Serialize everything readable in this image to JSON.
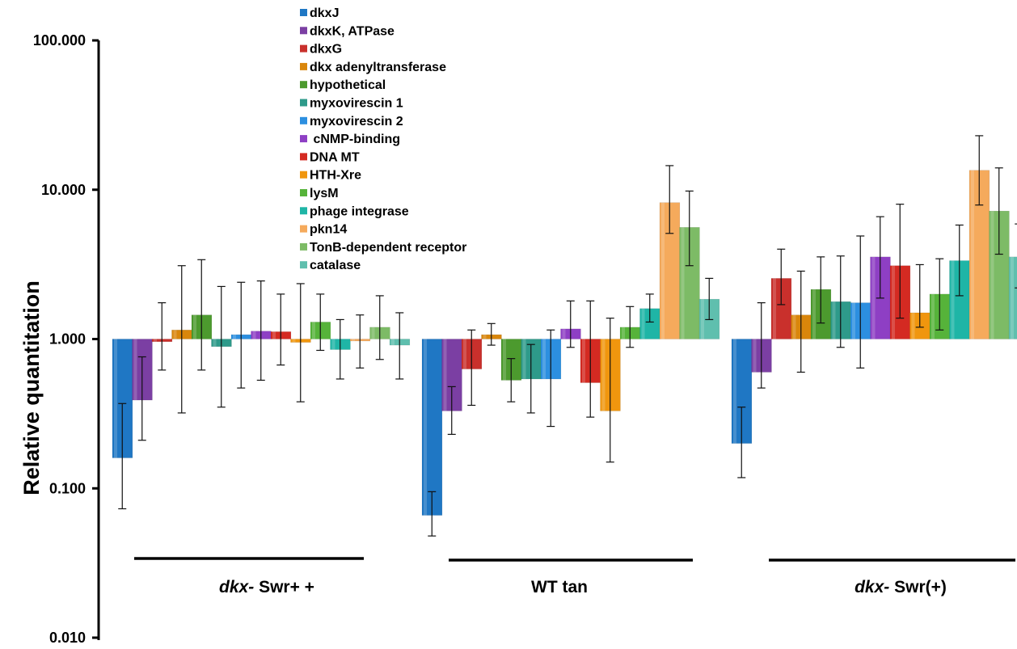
{
  "chart_data": {
    "type": "bar",
    "yscale": "log",
    "ylim": [
      0.01,
      100
    ],
    "yticks": [
      "100.000",
      "10.000",
      "1.000",
      "0.100",
      "0.010"
    ],
    "ylabel": "Relative quantitation",
    "xlabel": "",
    "legend_position": "top-center",
    "series": [
      {
        "name": "dkxJ",
        "color": "#1f77c4"
      },
      {
        "name": "dkxK, ATPase",
        "color": "#7b3fa3"
      },
      {
        "name": "dkxG",
        "color": "#c9302c"
      },
      {
        "name": "dkx adenyltransferase",
        "color": "#d9860b"
      },
      {
        "name": "hypothetical",
        "color": "#4c9a2e"
      },
      {
        "name": "myxovirescin 1",
        "color": "#2e9a8a"
      },
      {
        "name": "myxovirescin 2",
        "color": "#2c8fe0"
      },
      {
        "name": " cNMP-binding",
        "color": "#8e3fc4"
      },
      {
        "name": "DNA MT",
        "color": "#d42a22"
      },
      {
        "name": "HTH-Xre",
        "color": "#f0960e"
      },
      {
        "name": "lysM",
        "color": "#56b33a"
      },
      {
        "name": "phage integrase",
        "color": "#1fb5a6"
      },
      {
        "name": "pkn14",
        "color": "#f5aa5c"
      },
      {
        "name": "TonB-dependent receptor",
        "color": "#7dbb66"
      },
      {
        "name": "catalase",
        "color": "#5fbfae"
      }
    ],
    "groups": [
      {
        "label_italic": "dkx-",
        "label_rest": " Swr+ +",
        "values": [
          0.16,
          0.39,
          0.96,
          1.15,
          1.45,
          0.89,
          1.07,
          1.13,
          1.12,
          0.95,
          1.3,
          0.85,
          0.97,
          1.2,
          0.91
        ],
        "err_low": [
          0.073,
          0.21,
          0.62,
          0.32,
          0.62,
          0.35,
          0.47,
          0.53,
          0.67,
          0.38,
          0.84,
          0.54,
          0.64,
          0.73,
          0.54
        ],
        "err_high": [
          0.37,
          0.76,
          1.75,
          3.1,
          3.4,
          2.25,
          2.4,
          2.45,
          2.0,
          2.35,
          2.0,
          1.35,
          1.45,
          1.95,
          1.5
        ]
      },
      {
        "label_italic": "",
        "label_rest": "WT tan",
        "values": [
          0.066,
          0.33,
          0.63,
          1.07,
          0.53,
          0.54,
          0.54,
          1.17,
          0.51,
          0.33,
          1.2,
          1.6,
          8.2,
          5.6,
          1.85
        ],
        "err_low": [
          0.048,
          0.23,
          0.36,
          0.91,
          0.38,
          0.32,
          0.26,
          0.88,
          0.3,
          0.15,
          0.88,
          1.3,
          5.1,
          3.1,
          1.35
        ],
        "err_high": [
          0.095,
          0.48,
          1.15,
          1.27,
          0.74,
          0.92,
          1.15,
          1.8,
          1.8,
          1.38,
          1.65,
          2.0,
          14.5,
          9.8,
          2.55
        ]
      },
      {
        "label_italic": "dkx-",
        "label_rest": " Swr(+)",
        "values": [
          0.2,
          0.6,
          2.55,
          1.45,
          2.15,
          1.78,
          1.75,
          3.55,
          3.1,
          1.5,
          2.0,
          3.35,
          13.5,
          7.2,
          3.55
        ],
        "err_low": [
          0.118,
          0.47,
          1.7,
          0.6,
          1.28,
          0.88,
          0.64,
          1.88,
          1.38,
          1.2,
          1.15,
          1.95,
          7.9,
          3.7,
          2.2
        ],
        "err_high": [
          0.35,
          1.75,
          4.0,
          2.85,
          3.55,
          3.6,
          4.9,
          6.6,
          8.0,
          3.15,
          3.45,
          5.8,
          23.0,
          14.0,
          5.9
        ]
      }
    ]
  }
}
